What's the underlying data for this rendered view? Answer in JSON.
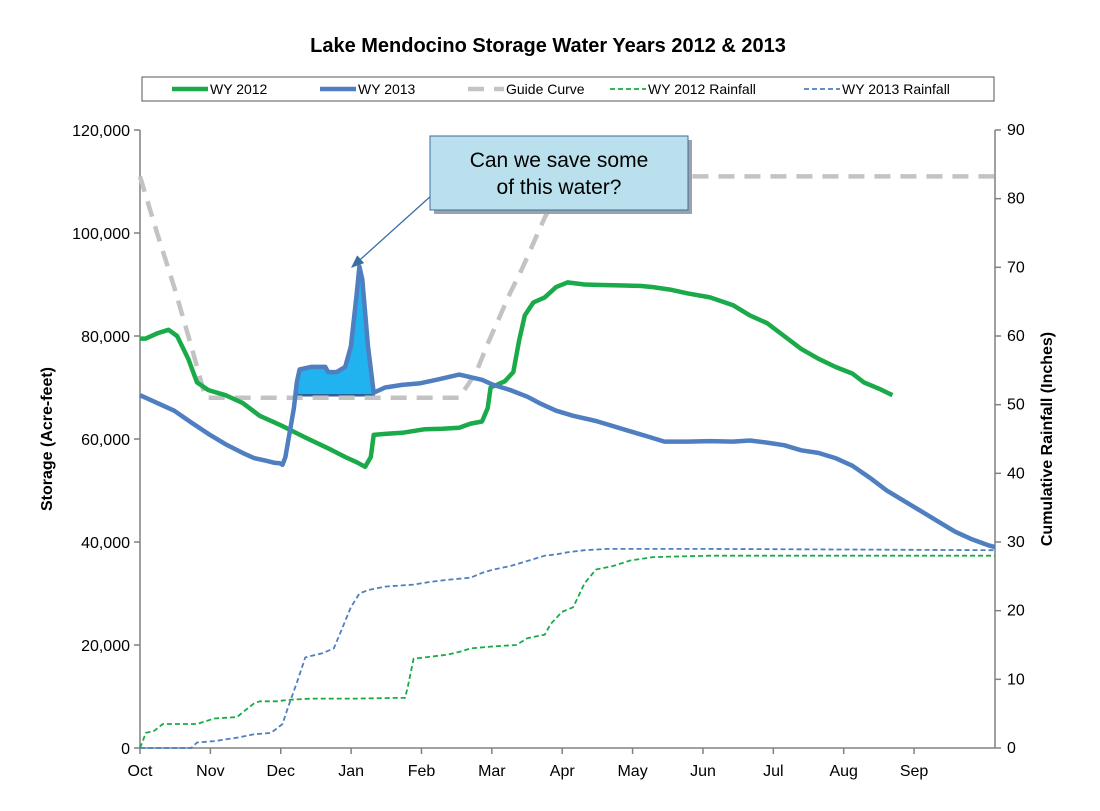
{
  "chart_data": {
    "type": "line",
    "title": "Lake Mendocino Storage Water Years 2012 & 2013",
    "ylabel": "Storage (Acre-feet)",
    "y2label": "Cumulative Rainfall (Inches)",
    "xlabel": "",
    "ylim": [
      0,
      120000
    ],
    "y2lim": [
      0,
      90
    ],
    "x_ticks": [
      "Oct",
      "Nov",
      "Dec",
      "Jan",
      "Feb",
      "Mar",
      "Apr",
      "May",
      "Jun",
      "Jul",
      "Aug",
      "Sep"
    ],
    "y_ticks": [
      "0",
      "20,000",
      "40,000",
      "60,000",
      "80,000",
      "100,000",
      "120,000"
    ],
    "y2_ticks": [
      "0",
      "10",
      "20",
      "30",
      "40",
      "50",
      "60",
      "70",
      "80",
      "90"
    ],
    "legend_position": "top",
    "grid": false,
    "annotation": {
      "lines": [
        "Can we save some",
        "of this water?"
      ]
    },
    "series": [
      {
        "name": "WY 2012",
        "axis": "left",
        "color": "#1aaa4a",
        "style": "solid",
        "points": [
          [
            0,
            79500
          ],
          [
            0.1,
            79500
          ],
          [
            0.3,
            80500
          ],
          [
            0.5,
            81200
          ],
          [
            0.65,
            80000
          ],
          [
            0.85,
            75500
          ],
          [
            1.0,
            71000
          ],
          [
            1.2,
            69500
          ],
          [
            1.5,
            68500
          ],
          [
            1.8,
            67000
          ],
          [
            2.1,
            64500
          ],
          [
            2.5,
            62500
          ],
          [
            2.9,
            60300
          ],
          [
            3.3,
            58200
          ],
          [
            3.6,
            56500
          ],
          [
            3.8,
            55500
          ],
          [
            3.95,
            54600
          ],
          [
            4.05,
            56500
          ],
          [
            4.1,
            60800
          ],
          [
            4.3,
            61000
          ],
          [
            4.6,
            61200
          ],
          [
            5.0,
            61900
          ],
          [
            5.3,
            62000
          ],
          [
            5.6,
            62200
          ],
          [
            5.8,
            63000
          ],
          [
            6.0,
            63400
          ],
          [
            6.1,
            66000
          ],
          [
            6.15,
            70000
          ],
          [
            6.4,
            71200
          ],
          [
            6.55,
            73000
          ],
          [
            6.65,
            79000
          ],
          [
            6.75,
            84000
          ],
          [
            6.9,
            86500
          ],
          [
            7.1,
            87500
          ],
          [
            7.3,
            89500
          ],
          [
            7.5,
            90400
          ],
          [
            7.8,
            90000
          ],
          [
            8.1,
            89900
          ],
          [
            8.5,
            89800
          ],
          [
            8.8,
            89700
          ],
          [
            9.0,
            89500
          ],
          [
            9.3,
            89000
          ],
          [
            9.6,
            88300
          ],
          [
            10.0,
            87500
          ],
          [
            10.4,
            86000
          ],
          [
            10.7,
            84000
          ],
          [
            11.0,
            82500
          ],
          [
            11.3,
            80000
          ],
          [
            11.6,
            77500
          ],
          [
            11.9,
            75600
          ],
          [
            12.2,
            74000
          ],
          [
            12.5,
            72700
          ],
          [
            12.7,
            71000
          ],
          [
            13.0,
            69600
          ],
          [
            13.2,
            68500
          ]
        ]
      },
      {
        "name": "WY 2013",
        "axis": "left",
        "color": "#4f7fc0",
        "style": "solid",
        "points": [
          [
            0,
            68500
          ],
          [
            0.3,
            67000
          ],
          [
            0.6,
            65500
          ],
          [
            0.9,
            63200
          ],
          [
            1.2,
            61000
          ],
          [
            1.5,
            59000
          ],
          [
            1.8,
            57300
          ],
          [
            2.0,
            56300
          ],
          [
            2.2,
            55800
          ],
          [
            2.35,
            55400
          ],
          [
            2.45,
            55300
          ],
          [
            2.5,
            55000
          ],
          [
            2.55,
            56500
          ],
          [
            2.7,
            66000
          ],
          [
            2.75,
            71000
          ],
          [
            2.8,
            73500
          ],
          [
            3.0,
            74000
          ],
          [
            3.25,
            74000
          ],
          [
            3.3,
            73000
          ],
          [
            3.45,
            73000
          ],
          [
            3.6,
            74000
          ],
          [
            3.7,
            78000
          ],
          [
            3.8,
            88000
          ],
          [
            3.85,
            93500
          ],
          [
            3.9,
            91000
          ],
          [
            4.0,
            78000
          ],
          [
            4.1,
            69000
          ],
          [
            4.3,
            70000
          ],
          [
            4.6,
            70500
          ],
          [
            4.9,
            70800
          ],
          [
            5.2,
            71500
          ],
          [
            5.4,
            72000
          ],
          [
            5.6,
            72500
          ],
          [
            5.8,
            72000
          ],
          [
            6.0,
            71500
          ],
          [
            6.2,
            70500
          ],
          [
            6.5,
            69500
          ],
          [
            6.8,
            68200
          ],
          [
            7.0,
            67000
          ],
          [
            7.3,
            65500
          ],
          [
            7.6,
            64500
          ],
          [
            8.0,
            63500
          ],
          [
            8.3,
            62500
          ],
          [
            8.6,
            61500
          ],
          [
            8.9,
            60500
          ],
          [
            9.2,
            59500
          ],
          [
            9.6,
            59500
          ],
          [
            10.0,
            59600
          ],
          [
            10.4,
            59500
          ],
          [
            10.7,
            59700
          ],
          [
            11.0,
            59300
          ],
          [
            11.3,
            58800
          ],
          [
            11.6,
            57800
          ],
          [
            11.9,
            57300
          ],
          [
            12.2,
            56300
          ],
          [
            12.5,
            54800
          ],
          [
            12.8,
            52500
          ],
          [
            13.1,
            50000
          ],
          [
            13.4,
            48000
          ],
          [
            13.7,
            46000
          ],
          [
            14.0,
            44000
          ],
          [
            14.3,
            42000
          ],
          [
            14.6,
            40500
          ],
          [
            14.9,
            39300
          ],
          [
            15.0,
            39000
          ]
        ]
      },
      {
        "name": "Guide Curve",
        "axis": "left",
        "color": "#c3c3c3",
        "style": "dashed",
        "points": [
          [
            0,
            111000
          ],
          [
            0.3,
            100000
          ],
          [
            0.6,
            89500
          ],
          [
            0.9,
            78000
          ],
          [
            1.15,
            68000
          ],
          [
            1.35,
            68000
          ],
          [
            5.6,
            68000
          ],
          [
            5.9,
            73000
          ],
          [
            6.1,
            78500
          ],
          [
            6.3,
            83500
          ],
          [
            6.5,
            88500
          ],
          [
            6.7,
            93000
          ],
          [
            6.9,
            98000
          ],
          [
            7.1,
            103000
          ],
          [
            7.3,
            107000
          ],
          [
            7.45,
            111000
          ],
          [
            15.0,
            111000
          ]
        ]
      },
      {
        "name": "WY 2012 Rainfall",
        "axis": "right",
        "color": "#1aaa4a",
        "style": "dotted",
        "points": [
          [
            0,
            0
          ],
          [
            0.05,
            1
          ],
          [
            0.1,
            2.2
          ],
          [
            0.25,
            2.5
          ],
          [
            0.4,
            3.5
          ],
          [
            1.0,
            3.5
          ],
          [
            1.3,
            4.3
          ],
          [
            1.7,
            4.5
          ],
          [
            1.85,
            5.5
          ],
          [
            2.0,
            6.5
          ],
          [
            2.1,
            6.8
          ],
          [
            2.4,
            6.8
          ],
          [
            2.6,
            7.0
          ],
          [
            3.0,
            7.2
          ],
          [
            3.3,
            7.2
          ],
          [
            3.8,
            7.2
          ],
          [
            4.5,
            7.3
          ],
          [
            4.65,
            7.3
          ],
          [
            4.7,
            9.0
          ],
          [
            4.8,
            13.0
          ],
          [
            5.0,
            13.2
          ],
          [
            5.4,
            13.6
          ],
          [
            5.6,
            14.0
          ],
          [
            5.8,
            14.5
          ],
          [
            6.2,
            14.8
          ],
          [
            6.6,
            15.0
          ],
          [
            6.8,
            16.0
          ],
          [
            7.1,
            16.5
          ],
          [
            7.2,
            18.0
          ],
          [
            7.4,
            19.8
          ],
          [
            7.6,
            20.5
          ],
          [
            7.8,
            24.0
          ],
          [
            8.0,
            26.0
          ],
          [
            8.3,
            26.5
          ],
          [
            8.6,
            27.3
          ],
          [
            9.0,
            27.8
          ],
          [
            10.0,
            28.0
          ],
          [
            15.0,
            28.0
          ]
        ]
      },
      {
        "name": "WY 2013 Rainfall",
        "axis": "right",
        "color": "#4f7fc0",
        "style": "dotted",
        "points": [
          [
            0,
            0
          ],
          [
            0.9,
            0
          ],
          [
            1.0,
            0.8
          ],
          [
            1.3,
            1.0
          ],
          [
            1.7,
            1.5
          ],
          [
            2.0,
            2.0
          ],
          [
            2.3,
            2.2
          ],
          [
            2.5,
            3.5
          ],
          [
            2.6,
            6.0
          ],
          [
            2.75,
            9.5
          ],
          [
            2.9,
            13.2
          ],
          [
            3.2,
            13.8
          ],
          [
            3.4,
            14.5
          ],
          [
            3.55,
            17.5
          ],
          [
            3.7,
            20.5
          ],
          [
            3.85,
            22.5
          ],
          [
            4.0,
            23.0
          ],
          [
            4.3,
            23.5
          ],
          [
            4.8,
            23.8
          ],
          [
            5.1,
            24.2
          ],
          [
            5.4,
            24.5
          ],
          [
            5.8,
            24.8
          ],
          [
            6.0,
            25.5
          ],
          [
            6.2,
            26.0
          ],
          [
            6.5,
            26.5
          ],
          [
            6.7,
            27.0
          ],
          [
            6.9,
            27.5
          ],
          [
            7.1,
            28.0
          ],
          [
            7.3,
            28.2
          ],
          [
            7.5,
            28.5
          ],
          [
            7.8,
            28.8
          ],
          [
            8.2,
            29.0
          ],
          [
            9.0,
            29.0
          ],
          [
            10.0,
            29.0
          ],
          [
            15.0,
            28.8
          ]
        ]
      }
    ]
  }
}
